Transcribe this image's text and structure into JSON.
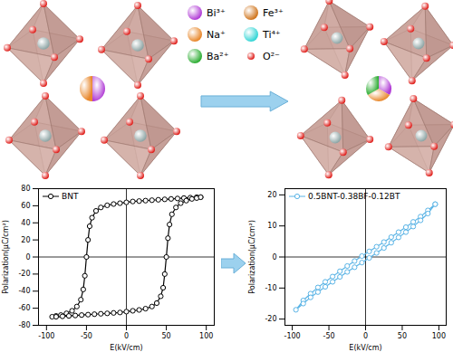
{
  "diagram": {
    "legend": [
      {
        "label": "Bi³⁺",
        "color": "#b23fd6"
      },
      {
        "label": "Fe³⁺",
        "color": "#d0761f"
      },
      {
        "label": "Na⁺",
        "color": "#e8882c"
      },
      {
        "label": "Ti⁴⁺",
        "color": "#35d6d6"
      },
      {
        "label": "Ba²⁺",
        "color": "#2fae35"
      },
      {
        "label": "O²⁻",
        "color": "#e0201c"
      }
    ]
  },
  "chart_data": [
    {
      "type": "line",
      "xlabel": "E(kV/cm)",
      "ylabel": "Polarization(μC/cm²)",
      "xlim": [
        -110,
        110
      ],
      "xticks": [
        -100,
        -50,
        0,
        50,
        100
      ],
      "ylim": [
        -80,
        80
      ],
      "yticks": [
        -80,
        -60,
        -40,
        -20,
        0,
        20,
        40,
        60,
        80
      ],
      "grid": false,
      "legend": "top-left",
      "series": [
        {
          "name": "BNT",
          "color": "#000000",
          "marker": "circle",
          "x": [
            93,
            88,
            80,
            72,
            64,
            56,
            48,
            40,
            32,
            24,
            16,
            8,
            0,
            -8,
            -16,
            -24,
            -32,
            -38,
            -43,
            -46,
            -48,
            -50,
            -52,
            -54,
            -57,
            -62,
            -68,
            -75,
            -82,
            -88,
            -93,
            -88,
            -80,
            -72,
            -64,
            -56,
            -48,
            -40,
            -32,
            -24,
            -16,
            -8,
            0,
            8,
            16,
            24,
            32,
            38,
            43,
            46,
            48,
            50,
            52,
            54,
            57,
            62,
            68,
            75,
            82,
            88,
            93
          ],
          "values": [
            70,
            70,
            69.5,
            69,
            68.5,
            68,
            67.5,
            67,
            66.5,
            66,
            65.5,
            65,
            64,
            63,
            62,
            60.5,
            58,
            54,
            46,
            36,
            20,
            0,
            -22,
            -38,
            -50,
            -58,
            -63,
            -66,
            -68,
            -69,
            -70,
            -70,
            -69.5,
            -69,
            -68.5,
            -68,
            -67.5,
            -67,
            -66.5,
            -66,
            -65.5,
            -65,
            -64,
            -63,
            -62,
            -60.5,
            -58,
            -54,
            -46,
            -36,
            -20,
            0,
            22,
            38,
            50,
            58,
            63,
            66,
            68,
            69,
            70
          ]
        }
      ]
    },
    {
      "type": "line",
      "xlabel": "E(kV/cm)",
      "ylabel": "Polarization(μC/cm²)",
      "xlim": [
        -110,
        110
      ],
      "xticks": [
        -100,
        -50,
        0,
        50,
        100
      ],
      "ylim": [
        -22,
        22
      ],
      "yticks": [
        -20,
        -10,
        0,
        10,
        20
      ],
      "grid": false,
      "legend": "top-left",
      "series": [
        {
          "name": "0.5BNT-0.38BF-0.12BT",
          "color": "#5ab4e6",
          "marker": "circle",
          "x": [
            95,
            85,
            75,
            65,
            55,
            45,
            35,
            25,
            15,
            5,
            -5,
            -15,
            -25,
            -35,
            -45,
            -55,
            -65,
            -75,
            -85,
            -95,
            -85,
            -75,
            -65,
            -55,
            -45,
            -35,
            -25,
            -15,
            -5,
            5,
            15,
            25,
            35,
            45,
            55,
            65,
            75,
            85,
            95
          ],
          "values": [
            17,
            15,
            13,
            11.3,
            9.6,
            8,
            6.4,
            4.8,
            3.3,
            1.8,
            0.3,
            -1.3,
            -2.9,
            -4.6,
            -6.3,
            -8,
            -9.8,
            -11.8,
            -14,
            -17,
            -15,
            -13,
            -11.3,
            -9.6,
            -8,
            -6.4,
            -4.8,
            -3.3,
            -1.8,
            -0.3,
            1.3,
            2.9,
            4.6,
            6.3,
            8,
            9.8,
            11.8,
            14,
            17
          ]
        }
      ]
    }
  ]
}
